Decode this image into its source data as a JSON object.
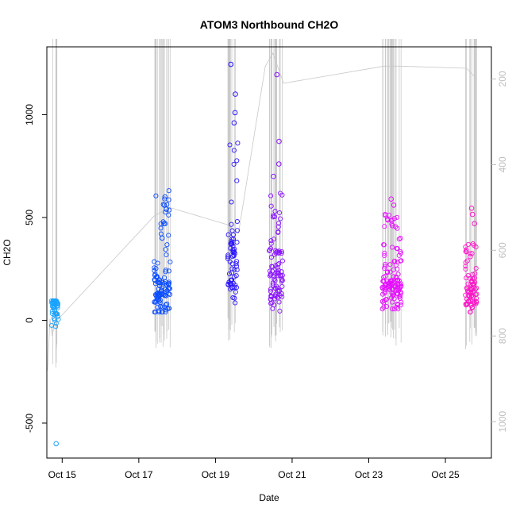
{
  "chart_data": {
    "type": "scatter",
    "title": "ATOM3 Northbound CH2O",
    "xlabel": "Date",
    "ylabel": "CH2O",
    "x_ticks": [
      "Oct 15",
      "Oct 17",
      "Oct 19",
      "Oct 21",
      "Oct 23",
      "Oct 25"
    ],
    "y_ticks": [
      -500,
      0,
      500,
      1000
    ],
    "y2_ticks": [
      200,
      400,
      600,
      800,
      1000
    ],
    "xlim_days": [
      14.6,
      26.2
    ],
    "ylim": [
      -670,
      1330
    ],
    "y2lim": [
      1085,
      125
    ],
    "right_axis_reversed": true,
    "grid": false,
    "legend": "none",
    "colors": {
      "background_line": "#c8c8c8",
      "right_axis": "#bfbfbf",
      "flight_colors": [
        "#1aa3ff",
        "#0a4dff",
        "#2a14ff",
        "#8a12ff",
        "#e60fff",
        "#ff14c8"
      ]
    },
    "flights": [
      {
        "x_start": 14.72,
        "x_end": 14.9,
        "median": 55,
        "low": -30,
        "high": 95,
        "outliers": [
          -600,
          90,
          10
        ]
      },
      {
        "x_start": 17.4,
        "x_end": 17.82,
        "median": 130,
        "low": 40,
        "high": 650,
        "outliers": [
          600,
          560,
          540,
          470,
          400
        ]
      },
      {
        "x_start": 19.32,
        "x_end": 19.58,
        "median": 260,
        "low": 85,
        "high": 880,
        "outliers": [
          1245,
          1100,
          1010,
          960
        ]
      },
      {
        "x_start": 20.4,
        "x_end": 20.75,
        "median": 185,
        "low": 45,
        "high": 620,
        "outliers": [
          1195,
          870,
          760,
          700
        ]
      },
      {
        "x_start": 23.35,
        "x_end": 23.85,
        "median": 150,
        "low": 55,
        "high": 520,
        "outliers": [
          590,
          560,
          460
        ]
      },
      {
        "x_start": 25.52,
        "x_end": 25.82,
        "median": 125,
        "low": 40,
        "high": 380,
        "outliers": [
          545,
          515,
          470,
          310
        ]
      }
    ]
  }
}
